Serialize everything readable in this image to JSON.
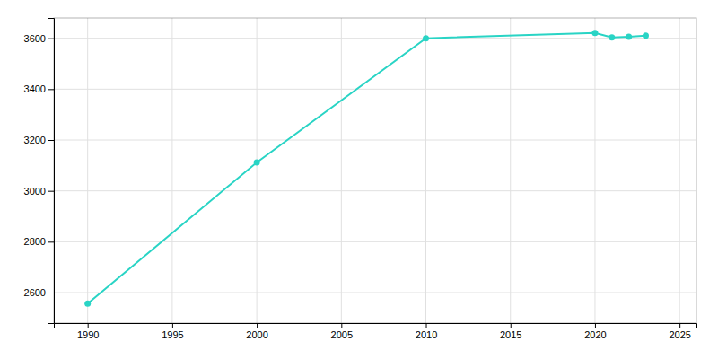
{
  "chart_data": {
    "type": "line",
    "x": [
      1990,
      2000,
      2010,
      2020,
      2021,
      2022,
      2023
    ],
    "values": [
      2557,
      3112,
      3600,
      3621,
      3603,
      3606,
      3610
    ],
    "color": "#29D4C5",
    "marker": "circle",
    "xlim": [
      1988,
      2026
    ],
    "ylim": [
      2480,
      3680
    ],
    "xticks": [
      1990,
      1995,
      2000,
      2005,
      2010,
      2015,
      2020,
      2025
    ],
    "yticks": [
      2600,
      2800,
      3000,
      3200,
      3400,
      3600
    ],
    "grid": true
  }
}
